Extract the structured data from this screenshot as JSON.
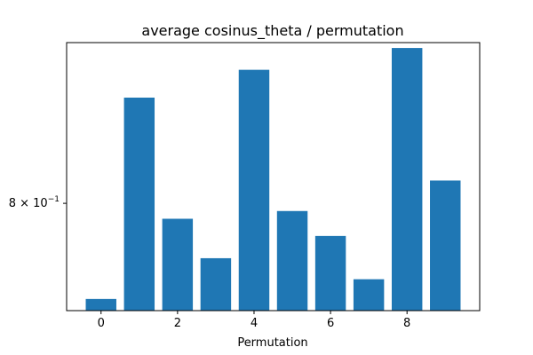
{
  "chart_data": {
    "type": "bar",
    "title": "average cosinus_theta / permutation",
    "xlabel": "Permutation",
    "ylabel": "",
    "yscale": "log",
    "color": "#1f77b4",
    "categories": [
      0,
      1,
      2,
      3,
      4,
      5,
      6,
      7,
      8,
      9
    ],
    "values": [
      0.74,
      0.872,
      0.79,
      0.765,
      0.892,
      0.795,
      0.779,
      0.752,
      0.908,
      0.815
    ],
    "xlim": [
      -0.9,
      9.9
    ],
    "ylim": [
      0.733,
      0.912
    ],
    "xticks": [
      {
        "value": 0,
        "label": "0"
      },
      {
        "value": 2,
        "label": "2"
      },
      {
        "value": 4,
        "label": "4"
      },
      {
        "value": 6,
        "label": "6"
      },
      {
        "value": 8,
        "label": "8"
      }
    ],
    "yticks": [
      {
        "value": 0.8,
        "label_base": "8 × 10",
        "label_exp": "−1"
      }
    ],
    "grid": false,
    "legend": "none"
  }
}
